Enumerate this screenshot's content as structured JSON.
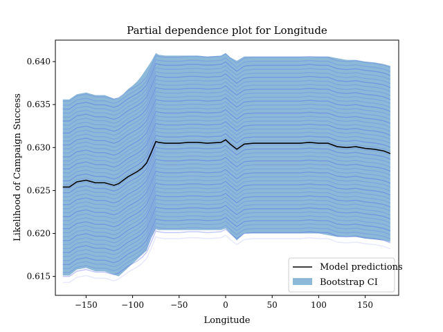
{
  "chart_data": {
    "type": "line",
    "title": "Partial dependence plot for Longitude",
    "xlabel": "Longitude",
    "ylabel": "Likelihood of Campaign Success",
    "xlim": [
      -183,
      186
    ],
    "ylim": [
      0.6128,
      0.6425
    ],
    "x_ticks": [
      -150,
      -100,
      -50,
      0,
      50,
      100,
      150
    ],
    "x_tick_labels": [
      "−150",
      "−100",
      "−50",
      "0",
      "50",
      "100",
      "150"
    ],
    "y_ticks": [
      0.615,
      0.62,
      0.625,
      0.63,
      0.635,
      0.64
    ],
    "y_tick_labels": [
      "0.615",
      "0.620",
      "0.625",
      "0.630",
      "0.635",
      "0.640"
    ],
    "grid": false,
    "legend_position": "bottom-right",
    "x": [
      -175,
      -168,
      -160,
      -150,
      -140,
      -130,
      -120,
      -115,
      -110,
      -105,
      -100,
      -95,
      -90,
      -85,
      -80,
      -75,
      -72,
      -65,
      -50,
      -40,
      -30,
      -20,
      -5,
      0,
      5,
      12,
      20,
      30,
      50,
      60,
      70,
      80,
      90,
      100,
      110,
      120,
      130,
      140,
      150,
      160,
      170,
      177
    ],
    "series": [
      {
        "name": "Model predictions",
        "color": "#000000",
        "values": [
          0.6254,
          0.6254,
          0.626,
          0.6262,
          0.6259,
          0.6259,
          0.6256,
          0.6258,
          0.6262,
          0.6266,
          0.6269,
          0.6272,
          0.6276,
          0.6282,
          0.6294,
          0.6307,
          0.6306,
          0.6305,
          0.6305,
          0.6306,
          0.6306,
          0.6305,
          0.6306,
          0.6309,
          0.6304,
          0.6298,
          0.6304,
          0.6305,
          0.6305,
          0.6305,
          0.6305,
          0.6305,
          0.6306,
          0.6305,
          0.6305,
          0.6301,
          0.63,
          0.6301,
          0.6299,
          0.6298,
          0.6296,
          0.6293
        ]
      },
      {
        "name": "Bootstrap CI",
        "color": "#8db9d9",
        "lower": [
          0.6151,
          0.6151,
          0.6158,
          0.616,
          0.6156,
          0.6156,
          0.6152,
          0.615,
          0.6155,
          0.616,
          0.6165,
          0.617,
          0.6175,
          0.618,
          0.6195,
          0.6205,
          0.6204,
          0.6204,
          0.6204,
          0.6204,
          0.6204,
          0.6204,
          0.6204,
          0.6206,
          0.62,
          0.6192,
          0.62,
          0.62,
          0.62,
          0.62,
          0.62,
          0.62,
          0.62,
          0.62,
          0.6198,
          0.6196,
          0.6196,
          0.6196,
          0.6194,
          0.6193,
          0.6192,
          0.619
        ],
        "upper": [
          0.6356,
          0.6356,
          0.6362,
          0.6364,
          0.6361,
          0.6361,
          0.6357,
          0.6358,
          0.6362,
          0.6368,
          0.6372,
          0.6377,
          0.6384,
          0.6392,
          0.64,
          0.641,
          0.6408,
          0.6407,
          0.6407,
          0.6407,
          0.6407,
          0.6406,
          0.6407,
          0.641,
          0.6405,
          0.6401,
          0.6406,
          0.6406,
          0.6406,
          0.6406,
          0.6406,
          0.6406,
          0.6406,
          0.6406,
          0.6406,
          0.6404,
          0.6402,
          0.6402,
          0.64,
          0.6399,
          0.6397,
          0.6395
        ]
      }
    ],
    "bootstrap_lines": {
      "color": "#4455ee",
      "count": 45,
      "offset_range": [
        -0.0104,
        0.01
      ],
      "outlier_offset": -0.0111
    }
  }
}
